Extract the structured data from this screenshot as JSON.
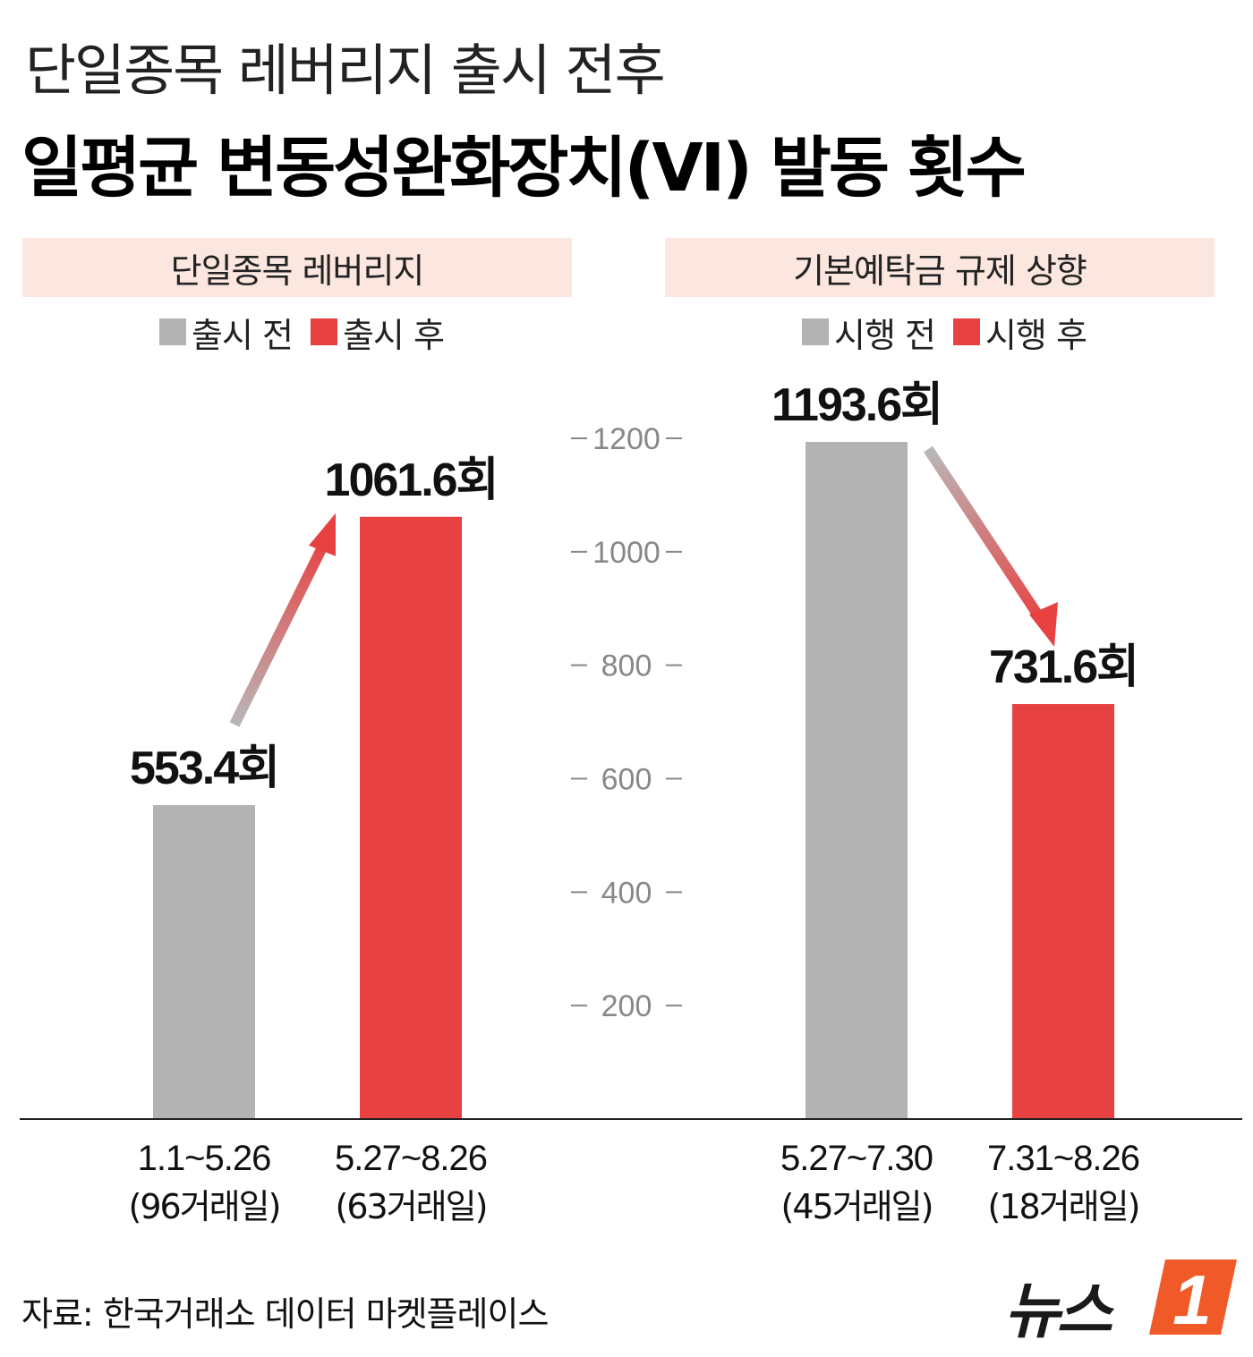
{
  "header": {
    "subtitle": "단일종목 레버리지 출시 전후",
    "title": "일평균 변동성완화장치(VI) 발동 횟수"
  },
  "colors": {
    "before": "#b3b3b3",
    "after": "#e84142",
    "header_bg": "#fbe7df",
    "axis": "#888888"
  },
  "chart_data": [
    {
      "type": "bar",
      "title": "단일종목 레버리지",
      "legend": [
        "출시 전",
        "출시 후"
      ],
      "categories": [
        [
          "1.1~5.26",
          "(96거래일)"
        ],
        [
          "5.27~8.26",
          "(63거래일)"
        ]
      ],
      "values": [
        553.4,
        1061.6
      ],
      "value_labels": [
        "553.4회",
        "1061.6회"
      ],
      "ylim": [
        0,
        1200
      ],
      "annotation": "increase arrow"
    },
    {
      "type": "bar",
      "title": "기본예탁금 규제 상향",
      "legend": [
        "시행 전",
        "시행 후"
      ],
      "categories": [
        [
          "5.27~7.30",
          "(45거래일)"
        ],
        [
          "7.31~8.26",
          "(18거래일)"
        ]
      ],
      "values": [
        1193.6,
        731.6
      ],
      "value_labels": [
        "1193.6회",
        "731.6회"
      ],
      "ylim": [
        0,
        1200
      ],
      "annotation": "decrease arrow"
    }
  ],
  "axis": {
    "ticks": [
      200,
      400,
      600,
      800,
      1000,
      1200
    ],
    "tick_labels": [
      "200",
      "400",
      "600",
      "800",
      "1000",
      "1200"
    ]
  },
  "footer": {
    "source": "자료: 한국거래소 데이터 마켓플레이스",
    "logo_text": "뉴스",
    "logo_mark": "1"
  }
}
